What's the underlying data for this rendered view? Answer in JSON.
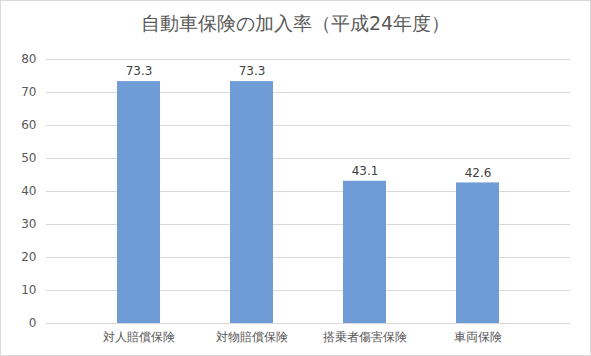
{
  "chart_data": {
    "type": "bar",
    "title": "自動車保険の加入率（平成24年度）",
    "categories": [
      "対人賠償保険",
      "対物賠償保険",
      "搭乗者傷害保険",
      "車両保険"
    ],
    "values": [
      73.3,
      73.3,
      43.1,
      42.6
    ],
    "color": "#6f9bd6",
    "ylim": [
      0,
      80
    ],
    "yticks": [
      0,
      10,
      20,
      30,
      40,
      50,
      60,
      70,
      80
    ],
    "grid": true,
    "data_labels": true
  }
}
